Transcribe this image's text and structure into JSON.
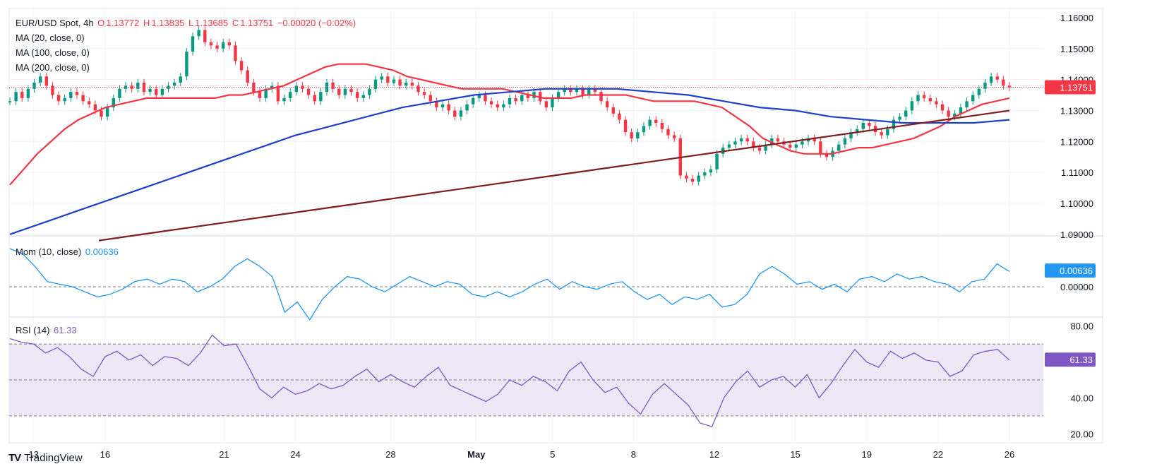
{
  "header": {
    "symbol": "EUR/USD Spot, 4h",
    "open_label": "O",
    "open": "1.13772",
    "high_label": "H",
    "high": "1.13835",
    "low_label": "L",
    "low": "1.13685",
    "close_label": "C",
    "close": "1.13751",
    "change": "−0.00020 (−0.02%)"
  },
  "legend": {
    "ma20": "MA (20, close, 0)",
    "ma100": "MA (100, close, 0)",
    "ma200": "MA (200, close, 0)",
    "mom_label": "Mom (10, close)",
    "mom_value": "0.00636",
    "rsi_label": "RSI (14)",
    "rsi_value": "61.33"
  },
  "footer": {
    "brand": "TradingView",
    "logo": "TV"
  },
  "colors": {
    "bull": "#089981",
    "bear": "#f23645",
    "ma20": "#f23645",
    "ma100": "#1e40c8",
    "ma200": "#7f1d1d",
    "mom": "#2196f3",
    "rsi": "#7e57c2",
    "rsi_band": "#ede7f6",
    "grid": "#f0f3fa",
    "axis_text": "#131722"
  },
  "chart_data": [
    {
      "type": "candlestick",
      "title": "EUR/USD Spot, 4h",
      "x_ticks": [
        "13",
        "16",
        "21",
        "24",
        "28",
        "May",
        "5",
        "8",
        "12",
        "15",
        "19",
        "22",
        "26"
      ],
      "x_tick_index": [
        5,
        20,
        45,
        60,
        80,
        98,
        114,
        131,
        148,
        165,
        180,
        195,
        210
      ],
      "y_ticks": [
        "1.16000",
        "1.15000",
        "1.14000",
        "1.13000",
        "1.12000",
        "1.11000",
        "1.10000",
        "1.09000"
      ],
      "ylim": [
        1.0895,
        1.1625
      ],
      "last_price": 1.13751,
      "last_price_label": "1.13751",
      "closes": [
        1.133,
        1.136,
        1.134,
        1.137,
        1.139,
        1.141,
        1.138,
        1.135,
        1.133,
        1.134,
        1.136,
        1.135,
        1.133,
        1.132,
        1.13,
        1.128,
        1.131,
        1.134,
        1.137,
        1.138,
        1.137,
        1.139,
        1.136,
        1.137,
        1.135,
        1.137,
        1.138,
        1.139,
        1.141,
        1.149,
        1.154,
        1.156,
        1.152,
        1.151,
        1.15,
        1.152,
        1.151,
        1.146,
        1.143,
        1.139,
        1.136,
        1.134,
        1.137,
        1.138,
        1.133,
        1.134,
        1.136,
        1.138,
        1.137,
        1.135,
        1.133,
        1.136,
        1.139,
        1.137,
        1.135,
        1.137,
        1.136,
        1.134,
        1.135,
        1.137,
        1.14,
        1.141,
        1.139,
        1.14,
        1.138,
        1.139,
        1.138,
        1.136,
        1.135,
        1.133,
        1.131,
        1.132,
        1.13,
        1.128,
        1.13,
        1.132,
        1.134,
        1.135,
        1.133,
        1.132,
        1.131,
        1.132,
        1.134,
        1.133,
        1.135,
        1.134,
        1.136,
        1.133,
        1.131,
        1.134,
        1.136,
        1.137,
        1.136,
        1.137,
        1.135,
        1.137,
        1.136,
        1.133,
        1.131,
        1.129,
        1.127,
        1.123,
        1.121,
        1.123,
        1.125,
        1.127,
        1.126,
        1.124,
        1.122,
        1.121,
        1.109,
        1.108,
        1.107,
        1.109,
        1.11,
        1.111,
        1.116,
        1.118,
        1.119,
        1.12,
        1.121,
        1.12,
        1.118,
        1.117,
        1.119,
        1.121,
        1.12,
        1.119,
        1.118,
        1.119,
        1.12,
        1.121,
        1.12,
        1.116,
        1.115,
        1.117,
        1.119,
        1.121,
        1.123,
        1.124,
        1.126,
        1.125,
        1.123,
        1.122,
        1.124,
        1.127,
        1.128,
        1.13,
        1.133,
        1.135,
        1.134,
        1.133,
        1.132,
        1.13,
        1.128,
        1.129,
        1.131,
        1.133,
        1.135,
        1.137,
        1.139,
        1.141,
        1.14,
        1.138,
        1.1375
      ],
      "series": [
        {
          "name": "MA (20, close, 0)",
          "values": [
            1.106,
            1.111,
            1.116,
            1.12,
            1.124,
            1.127,
            1.129,
            1.131,
            1.132,
            1.133,
            1.134,
            1.134,
            1.134,
            1.134,
            1.134,
            1.134,
            1.135,
            1.135,
            1.136,
            1.137,
            1.138,
            1.14,
            1.142,
            1.144,
            1.145,
            1.145,
            1.145,
            1.144,
            1.143,
            1.141,
            1.14,
            1.139,
            1.138,
            1.137,
            1.137,
            1.137,
            1.137,
            1.136,
            1.135,
            1.134,
            1.134,
            1.134,
            1.135,
            1.135,
            1.135,
            1.135,
            1.134,
            1.133,
            1.133,
            1.133,
            1.133,
            1.132,
            1.131,
            1.128,
            1.125,
            1.121,
            1.119,
            1.117,
            1.116,
            1.116,
            1.116,
            1.117,
            1.118,
            1.118,
            1.119,
            1.12,
            1.121,
            1.123,
            1.125,
            1.128,
            1.13,
            1.132,
            1.133,
            1.134
          ]
        },
        {
          "name": "MA (100, close, 0)",
          "values": [
            1.09,
            1.094,
            1.098,
            1.102,
            1.106,
            1.11,
            1.114,
            1.118,
            1.122,
            1.125,
            1.128,
            1.131,
            1.133,
            1.135,
            1.136,
            1.137,
            1.137,
            1.137,
            1.136,
            1.135,
            1.133,
            1.131,
            1.13,
            1.128,
            1.127,
            1.126,
            1.126,
            1.126,
            1.127
          ]
        },
        {
          "name": "MA (200, close, 0)",
          "values": [
            1.088,
            1.091,
            1.094,
            1.097,
            1.1,
            1.103,
            1.106,
            1.109,
            1.112,
            1.115,
            1.118,
            1.121,
            1.124,
            1.127,
            1.13
          ]
        }
      ]
    },
    {
      "type": "line",
      "title": "Mom (10, close)",
      "last_value": 0.00636,
      "last_value_label": "0.00636",
      "y_ticks": [
        "0.00000"
      ],
      "values": [
        0.015,
        0.013,
        0.008,
        0.002,
        0.001,
        0.0,
        -0.002,
        -0.004,
        -0.003,
        -0.001,
        0.002,
        0.003,
        0.001,
        0.003,
        0.002,
        -0.002,
        0.0,
        0.003,
        0.008,
        0.011,
        0.008,
        0.004,
        -0.01,
        -0.006,
        -0.013,
        -0.005,
        0.0,
        0.004,
        0.003,
        0.0,
        -0.002,
        0.001,
        0.004,
        0.002,
        0.0,
        0.002,
        0.001,
        -0.003,
        -0.004,
        -0.002,
        -0.004,
        -0.002,
        0.001,
        0.003,
        -0.001,
        0.002,
        0.0,
        -0.001,
        0.001,
        0.002,
        -0.002,
        -0.005,
        -0.003,
        -0.007,
        -0.004,
        -0.005,
        -0.003,
        -0.008,
        -0.007,
        -0.003,
        0.005,
        0.008,
        0.005,
        0.001,
        0.002,
        -0.001,
        0.001,
        -0.002,
        0.003,
        0.004,
        0.002,
        0.005,
        0.003,
        0.004,
        0.002,
        0.001,
        -0.002,
        0.002,
        0.003,
        0.009,
        0.006
      ]
    },
    {
      "type": "line",
      "title": "RSI (14)",
      "last_value": 61.33,
      "last_value_label": "61.33",
      "y_ticks": [
        "80.00",
        "40.00",
        "20.00"
      ],
      "ylim": [
        15,
        85
      ],
      "levels": [
        70,
        50,
        30
      ],
      "values": [
        73,
        71,
        70,
        65,
        68,
        63,
        56,
        52,
        63,
        66,
        61,
        64,
        58,
        63,
        62,
        58,
        65,
        75,
        69,
        70,
        58,
        45,
        40,
        46,
        42,
        44,
        48,
        45,
        47,
        52,
        56,
        49,
        53,
        49,
        46,
        52,
        57,
        47,
        44,
        41,
        38,
        42,
        50,
        47,
        52,
        49,
        44,
        55,
        60,
        50,
        43,
        46,
        37,
        31,
        42,
        48,
        42,
        36,
        26,
        24,
        40,
        49,
        55,
        46,
        50,
        52,
        46,
        53,
        40,
        48,
        58,
        67,
        60,
        57,
        66,
        62,
        65,
        61,
        60,
        52,
        55,
        64,
        66,
        67,
        61
      ]
    }
  ]
}
